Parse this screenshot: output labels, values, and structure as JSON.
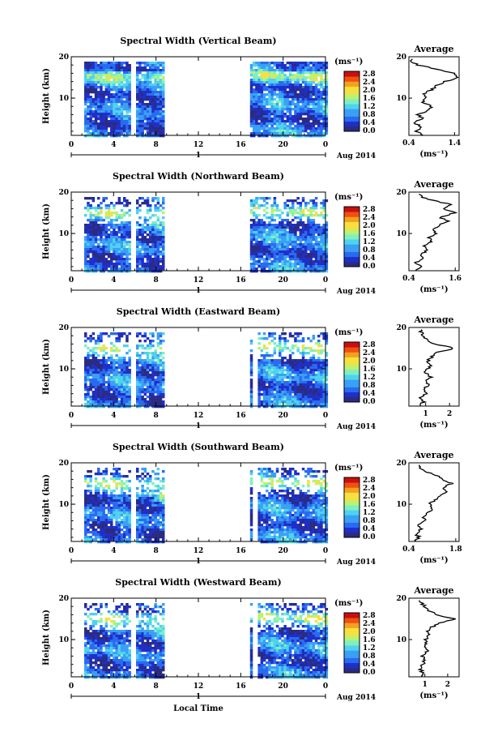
{
  "panels": [
    {
      "title": "Spectral Width (Vertical Beam)",
      "avg_title": "Average",
      "avg_xticks": [
        "0.4",
        "1.4"
      ],
      "avg_xrange": [
        0.4,
        1.5
      ],
      "avg_profile": [
        [
          0.7,
          1
        ],
        [
          0.55,
          2
        ],
        [
          0.7,
          3
        ],
        [
          0.5,
          4
        ],
        [
          0.7,
          5
        ],
        [
          0.6,
          6
        ],
        [
          0.8,
          7
        ],
        [
          0.9,
          8
        ],
        [
          0.7,
          9
        ],
        [
          0.8,
          10
        ],
        [
          0.7,
          11
        ],
        [
          0.9,
          12
        ],
        [
          1.0,
          13
        ],
        [
          1.2,
          14
        ],
        [
          1.45,
          15
        ],
        [
          1.4,
          16
        ],
        [
          1.0,
          17
        ],
        [
          0.6,
          18
        ],
        [
          0.45,
          19
        ]
      ]
    },
    {
      "title": "Spectral Width (Northward Beam)",
      "avg_title": "Average",
      "avg_xticks": [
        "0.4",
        "1.6"
      ],
      "avg_xrange": [
        0.4,
        1.7
      ],
      "avg_profile": [
        [
          0.6,
          1
        ],
        [
          0.7,
          2
        ],
        [
          0.6,
          3
        ],
        [
          0.8,
          4
        ],
        [
          0.7,
          5
        ],
        [
          0.9,
          6
        ],
        [
          0.8,
          7
        ],
        [
          1.0,
          8
        ],
        [
          0.9,
          9
        ],
        [
          1.1,
          10
        ],
        [
          1.0,
          11
        ],
        [
          1.2,
          12
        ],
        [
          1.4,
          13
        ],
        [
          1.2,
          14
        ],
        [
          1.6,
          15
        ],
        [
          1.3,
          16
        ],
        [
          1.5,
          17
        ],
        [
          1.0,
          18
        ],
        [
          0.7,
          19
        ]
      ]
    },
    {
      "title": "Spectral Width (Eastward Beam)",
      "avg_title": "Average",
      "avg_xticks": [
        "1",
        "2"
      ],
      "avg_xrange": [
        0.3,
        2.4
      ],
      "avg_profile": [
        [
          0.8,
          1
        ],
        [
          0.9,
          2
        ],
        [
          0.8,
          3
        ],
        [
          1.0,
          4
        ],
        [
          0.9,
          5
        ],
        [
          1.1,
          6
        ],
        [
          1.0,
          7
        ],
        [
          1.2,
          8
        ],
        [
          1.0,
          9
        ],
        [
          1.1,
          10
        ],
        [
          1.2,
          11
        ],
        [
          1.1,
          12
        ],
        [
          1.3,
          13
        ],
        [
          1.5,
          14
        ],
        [
          2.2,
          15
        ],
        [
          1.4,
          16
        ],
        [
          1.1,
          17
        ],
        [
          0.9,
          18
        ],
        [
          0.8,
          19
        ]
      ]
    },
    {
      "title": "Spectral Width (Southward Beam)",
      "avg_title": "Average",
      "avg_xticks": [
        "0.4",
        "1.8"
      ],
      "avg_xrange": [
        0.4,
        1.9
      ],
      "avg_profile": [
        [
          0.6,
          1
        ],
        [
          0.7,
          2
        ],
        [
          0.6,
          3
        ],
        [
          0.8,
          4
        ],
        [
          0.7,
          5
        ],
        [
          0.9,
          6
        ],
        [
          0.8,
          7
        ],
        [
          1.0,
          8
        ],
        [
          1.1,
          9
        ],
        [
          1.0,
          10
        ],
        [
          1.2,
          11
        ],
        [
          1.3,
          12
        ],
        [
          1.5,
          13
        ],
        [
          1.4,
          14
        ],
        [
          1.7,
          15
        ],
        [
          1.4,
          16
        ],
        [
          1.2,
          17
        ],
        [
          0.9,
          18
        ],
        [
          0.7,
          19
        ]
      ]
    },
    {
      "title": "Spectral Width (Westward Beam)",
      "avg_title": "Average",
      "avg_xticks": [
        "1",
        "2"
      ],
      "avg_xrange": [
        0.3,
        2.5
      ],
      "avg_profile": [
        [
          0.8,
          1
        ],
        [
          0.9,
          2
        ],
        [
          0.8,
          3
        ],
        [
          0.9,
          4
        ],
        [
          1.0,
          5
        ],
        [
          0.9,
          6
        ],
        [
          1.1,
          7
        ],
        [
          1.0,
          8
        ],
        [
          1.1,
          9
        ],
        [
          1.0,
          10
        ],
        [
          1.2,
          11
        ],
        [
          1.1,
          12
        ],
        [
          1.3,
          13
        ],
        [
          1.6,
          14
        ],
        [
          2.3,
          15
        ],
        [
          1.5,
          16
        ],
        [
          1.2,
          17
        ],
        [
          1.0,
          18
        ],
        [
          0.8,
          19
        ]
      ]
    }
  ],
  "common": {
    "ylabel": "Height (km)",
    "yticks": [
      "10",
      "20"
    ],
    "xticks": [
      "0",
      "4",
      "8",
      "12",
      "16",
      "20",
      "0"
    ],
    "day_label": "1",
    "date_label": "Aug 2014",
    "xlabel": "Local Time",
    "unit_label": "(ms⁻¹)",
    "colorbar_ticks": [
      "0.0",
      "0.4",
      "0.8",
      "1.2",
      "1.6",
      "2.0",
      "2.4",
      "2.8"
    ],
    "avg_unit_label": "(ms⁻¹)"
  },
  "colors": {
    "scale": [
      "#2b2b80",
      "#1f2fc8",
      "#2a6af0",
      "#3aa0f5",
      "#4fd2f0",
      "#7ef0c0",
      "#c0f070",
      "#f5e040",
      "#f5a020",
      "#f05010",
      "#c81010"
    ]
  },
  "chart_data": {
    "type": "heatmap",
    "x": {
      "label": "Local Time",
      "range": [
        0,
        24
      ],
      "unit": "hour"
    },
    "y": {
      "label": "Height (km)",
      "range": [
        1,
        20
      ]
    },
    "z": {
      "label": "Spectral width (ms⁻¹)",
      "range": [
        0.0,
        3.0
      ]
    },
    "data_gaps_hours": [
      [
        0,
        1
      ],
      [
        5.4,
        6
      ],
      [
        8.7,
        16.7
      ]
    ],
    "series": [
      {
        "name": "Vertical Beam"
      },
      {
        "name": "Northward Beam"
      },
      {
        "name": "Eastward Beam"
      },
      {
        "name": "Southward Beam"
      },
      {
        "name": "Westward Beam"
      }
    ]
  }
}
